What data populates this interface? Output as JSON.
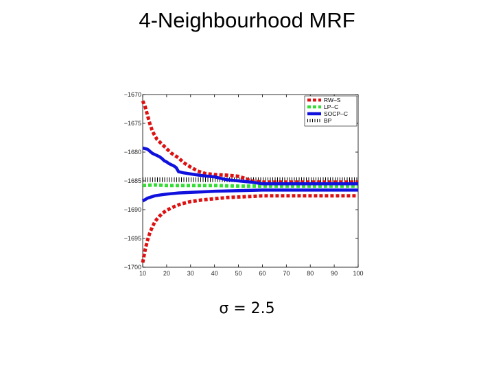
{
  "slide": {
    "title": "4-Neighbourhood MRF",
    "caption": "σ = 2.5"
  },
  "chart_data": {
    "type": "line",
    "title": "",
    "xlabel": "",
    "ylabel": "",
    "xlim": [
      10,
      100
    ],
    "ylim": [
      -1700,
      -1670
    ],
    "y_reversed": true,
    "x_ticks": [
      10,
      20,
      30,
      40,
      50,
      60,
      70,
      80,
      90,
      100
    ],
    "y_ticks": [
      -1670,
      -1675,
      -1680,
      -1685,
      -1690,
      -1695,
      -1700
    ],
    "x_tick_labels": [
      "10",
      "20",
      "30",
      "40",
      "50",
      "60",
      "70",
      "80",
      "90",
      "100"
    ],
    "y_tick_labels": [
      "−1670",
      "−1675",
      "−1680",
      "−1685",
      "−1690",
      "−1695",
      "−1700"
    ],
    "grid": false,
    "legend_position": "top-right",
    "series": [
      {
        "name": "RW–S",
        "color": "#dd1111",
        "style": "dotted-thick",
        "x": [
          10,
          11,
          12,
          13,
          14,
          15,
          16,
          17,
          18,
          20,
          22,
          25,
          27,
          30,
          33,
          36,
          40,
          45,
          50,
          53,
          55,
          60,
          70,
          80,
          90,
          100
        ],
        "y": [
          -1671.1,
          -1672.1,
          -1673.6,
          -1675.1,
          -1676.3,
          -1677.1,
          -1677.8,
          -1678.2,
          -1678.6,
          -1679.4,
          -1680.2,
          -1681.0,
          -1681.8,
          -1682.6,
          -1683.3,
          -1683.7,
          -1683.9,
          -1684.0,
          -1684.2,
          -1684.6,
          -1685.0,
          -1685.2,
          -1685.2,
          -1685.2,
          -1685.2,
          -1685.2
        ]
      },
      {
        "name": "RW–S",
        "color": "#dd1111",
        "style": "dotted-thick",
        "x": [
          10,
          11,
          12,
          13,
          14,
          15,
          16,
          18,
          20,
          23,
          26,
          30,
          35,
          40,
          45,
          50,
          55,
          60,
          70,
          80,
          90,
          100
        ],
        "y": [
          -1699.2,
          -1697.0,
          -1695.3,
          -1694.0,
          -1693.0,
          -1692.2,
          -1691.6,
          -1690.7,
          -1690.1,
          -1689.5,
          -1689.0,
          -1688.6,
          -1688.3,
          -1688.1,
          -1687.9,
          -1687.8,
          -1687.7,
          -1687.6,
          -1687.6,
          -1687.6,
          -1687.6,
          -1687.6
        ]
      },
      {
        "name": "LP–C",
        "color": "#33dd33",
        "style": "dotted-thick",
        "x": [
          10,
          15,
          20,
          25,
          30,
          40,
          50,
          60,
          70,
          80,
          90,
          100
        ],
        "y": [
          -1685.8,
          -1685.7,
          -1685.8,
          -1685.8,
          -1685.8,
          -1685.8,
          -1685.9,
          -1685.9,
          -1685.9,
          -1685.9,
          -1685.9,
          -1685.9
        ]
      },
      {
        "name": "SOCP–C",
        "color": "#1111dd",
        "style": "solid-thick",
        "x": [
          10,
          12,
          14,
          15,
          16,
          17,
          18,
          19,
          20,
          21,
          22,
          23,
          24,
          25,
          27,
          30,
          35,
          40,
          45,
          50,
          55,
          60,
          70,
          80,
          90,
          100
        ],
        "y": [
          -1679.3,
          -1679.5,
          -1680.2,
          -1680.4,
          -1680.6,
          -1680.8,
          -1681.1,
          -1681.5,
          -1681.7,
          -1682.0,
          -1682.2,
          -1682.4,
          -1682.7,
          -1683.4,
          -1683.6,
          -1683.8,
          -1684.1,
          -1684.3,
          -1684.8,
          -1685.0,
          -1685.2,
          -1685.5,
          -1685.5,
          -1685.5,
          -1685.5,
          -1685.5
        ]
      },
      {
        "name": "SOCP–C",
        "color": "#1111dd",
        "style": "solid-thick",
        "x": [
          10,
          12,
          15,
          18,
          20,
          25,
          30,
          35,
          40,
          50,
          60,
          70,
          80,
          90,
          100
        ],
        "y": [
          -1688.5,
          -1688.0,
          -1687.6,
          -1687.4,
          -1687.3,
          -1687.1,
          -1687.0,
          -1686.9,
          -1686.8,
          -1686.7,
          -1686.6,
          -1686.6,
          -1686.6,
          -1686.6,
          -1686.6
        ]
      },
      {
        "name": "BP",
        "color": "#000000",
        "style": "hatched",
        "x": [
          10,
          20,
          30,
          40,
          50,
          60,
          70,
          80,
          90,
          100
        ],
        "y": [
          -1684.8,
          -1684.8,
          -1684.8,
          -1684.8,
          -1684.8,
          -1684.8,
          -1684.8,
          -1684.8,
          -1684.8,
          -1684.8
        ]
      }
    ],
    "legend": [
      {
        "label": "RW–S",
        "color": "#dd1111",
        "style": "dotted-thick"
      },
      {
        "label": "LP–C",
        "color": "#33dd33",
        "style": "dotted-thick"
      },
      {
        "label": "SOCP–C",
        "color": "#1111dd",
        "style": "solid-thick"
      },
      {
        "label": "BP",
        "color": "#000000",
        "style": "hatched"
      }
    ]
  }
}
